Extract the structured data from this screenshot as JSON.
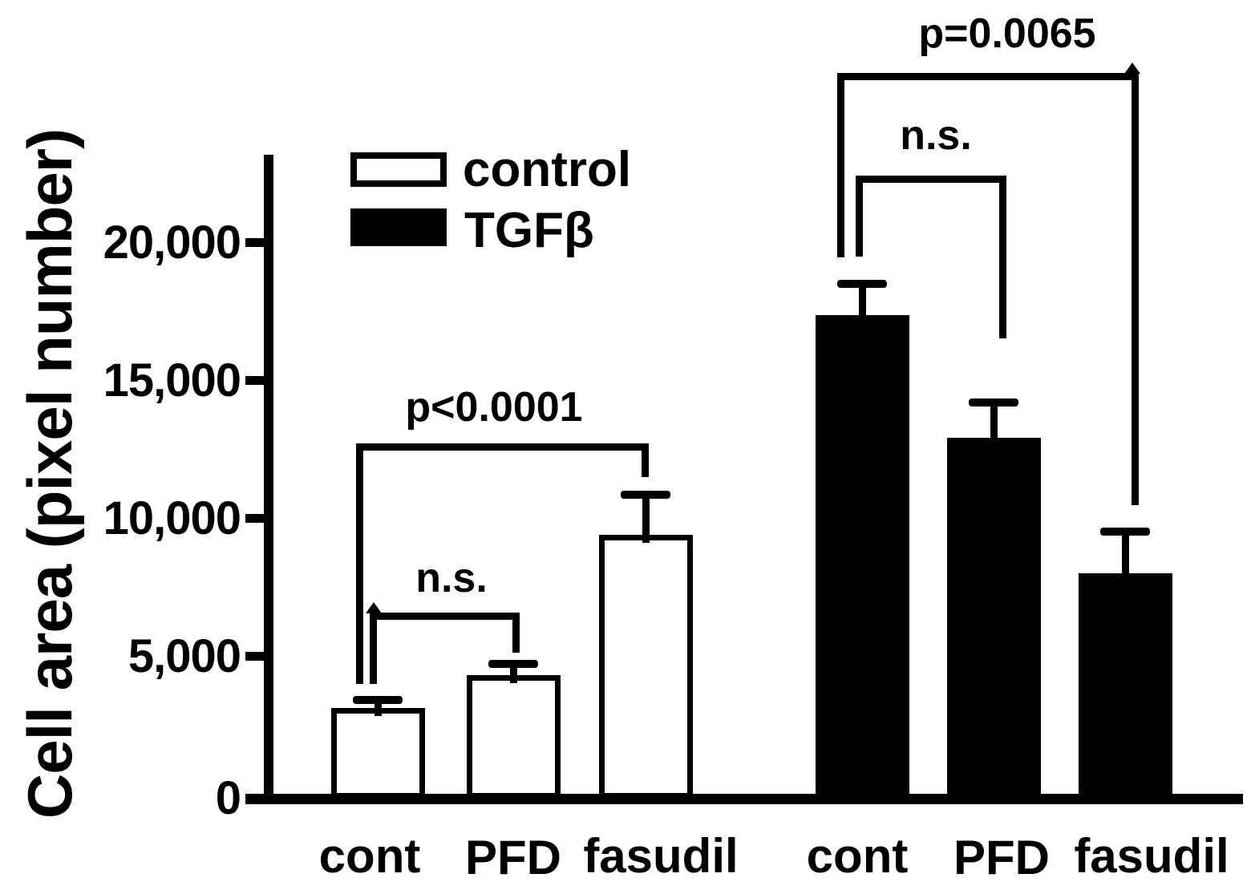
{
  "figure": {
    "ylabel": "Cell area (pixel number)",
    "ytick_labels": [
      "20,000",
      "15,000",
      "10,000",
      "5,000",
      "0"
    ],
    "xtick_labels": [
      "cont",
      "PFD",
      "fasudil",
      "cont",
      "PFD",
      "fasudil"
    ],
    "legend": [
      {
        "label": "control",
        "fill": "#ffffff"
      },
      {
        "label": "TGFβ",
        "fill": "#000000"
      }
    ],
    "ink_color": "#000000",
    "background_color": "#ffffff"
  },
  "chart_data": {
    "type": "bar",
    "title": "",
    "xlabel": "",
    "ylabel": "Cell area (pixel number)",
    "categories": [
      "cont",
      "PFD",
      "fasudil"
    ],
    "series": [
      {
        "name": "control",
        "fill": "#ffffff",
        "values": [
          3100,
          4300,
          9400
        ],
        "errors_plus": [
          300,
          400,
          1450
        ]
      },
      {
        "name": "TGFβ",
        "fill": "#000000",
        "values": [
          17350,
          12900,
          8000
        ],
        "errors_plus": [
          1150,
          1300,
          1500
        ]
      }
    ],
    "ylim": [
      0,
      23500
    ],
    "yticks": [
      0,
      5000,
      10000,
      15000,
      20000
    ],
    "grid": false,
    "error_bars": "upper whisker with cap",
    "legend_position": "top-left inside plot",
    "significance": [
      {
        "group": "control",
        "pair": [
          "cont",
          "fasudil"
        ],
        "label": "p<0.0001"
      },
      {
        "group": "control",
        "pair": [
          "cont",
          "PFD"
        ],
        "label": "n.s."
      },
      {
        "group": "TGFβ",
        "pair": [
          "cont",
          "fasudil"
        ],
        "label": "p=0.0065"
      },
      {
        "group": "TGFβ",
        "pair": [
          "cont",
          "PFD"
        ],
        "label": "n.s."
      }
    ]
  }
}
